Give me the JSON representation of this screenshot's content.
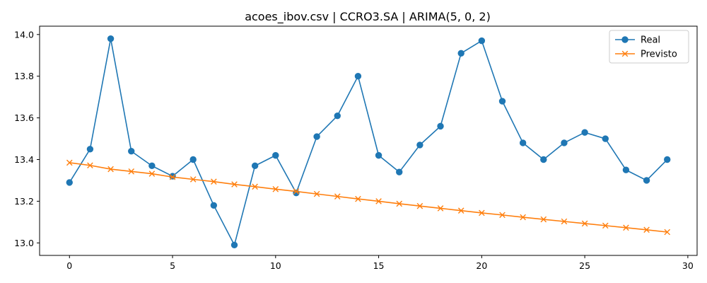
{
  "chart_data": {
    "type": "line",
    "title": "acoes_ibov.csv | CCRO3.SA | ARIMA(5, 0, 2)",
    "xlabel": "",
    "ylabel": "",
    "x": [
      0,
      1,
      2,
      3,
      4,
      5,
      6,
      7,
      8,
      9,
      10,
      11,
      12,
      13,
      14,
      15,
      16,
      17,
      18,
      19,
      20,
      21,
      22,
      23,
      24,
      25,
      26,
      27,
      28,
      29
    ],
    "xlim": [
      -1.45,
      30.45
    ],
    "ylim": [
      12.94,
      14.04
    ],
    "xticks": [
      0,
      5,
      10,
      15,
      20,
      25,
      30
    ],
    "xtick_labels": [
      "0",
      "5",
      "10",
      "15",
      "20",
      "25",
      "30"
    ],
    "yticks": [
      13.0,
      13.2,
      13.4,
      13.6,
      13.8,
      14.0
    ],
    "ytick_labels": [
      "13.0",
      "13.2",
      "13.4",
      "13.6",
      "13.8",
      "14.0"
    ],
    "grid": false,
    "legend_position": "top-right",
    "series": [
      {
        "name": "Real",
        "color": "#1f77b4",
        "marker": "circle",
        "values": [
          13.29,
          13.45,
          13.98,
          13.44,
          13.37,
          13.32,
          13.4,
          13.18,
          12.99,
          13.37,
          13.42,
          13.24,
          13.51,
          13.61,
          13.8,
          13.42,
          13.34,
          13.47,
          13.56,
          13.91,
          13.97,
          13.68,
          13.48,
          13.4,
          13.48,
          13.53,
          13.5,
          13.35,
          13.3,
          13.4
        ]
      },
      {
        "name": "Previsto",
        "color": "#ff7f0e",
        "marker": "x",
        "values": [
          13.385,
          13.372,
          13.354,
          13.343,
          13.332,
          13.316,
          13.305,
          13.294,
          13.281,
          13.27,
          13.258,
          13.247,
          13.235,
          13.223,
          13.211,
          13.2,
          13.188,
          13.177,
          13.166,
          13.155,
          13.144,
          13.134,
          13.123,
          13.113,
          13.103,
          13.093,
          13.083,
          13.073,
          13.063,
          13.052
        ]
      }
    ]
  }
}
